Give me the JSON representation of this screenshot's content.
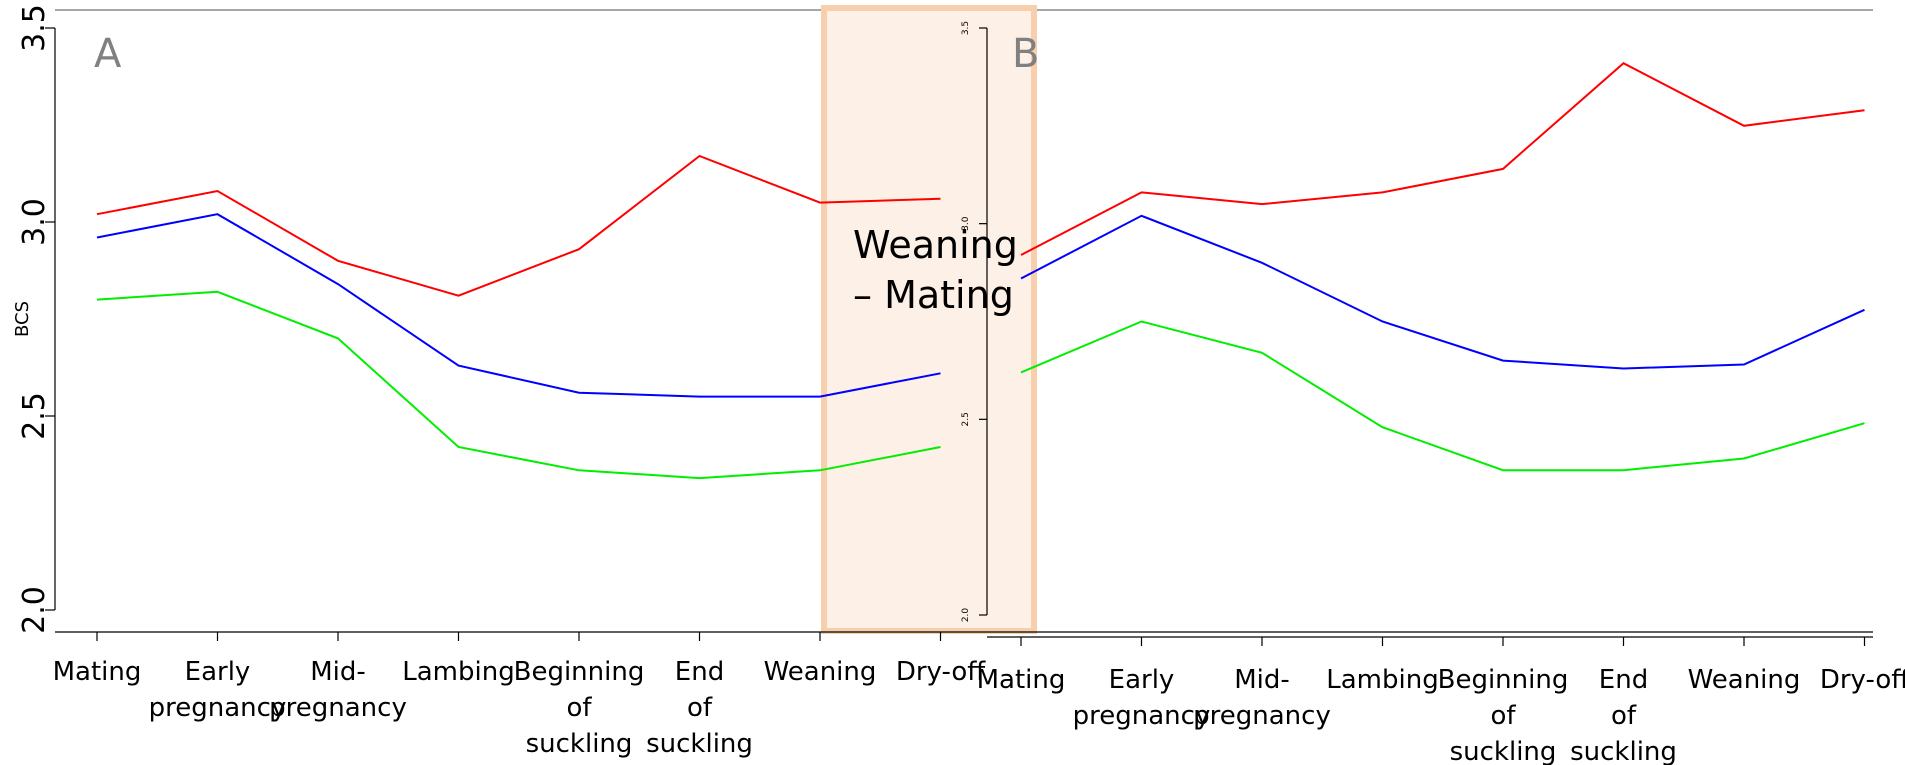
{
  "chart_data": [
    {
      "type": "line",
      "panel": "A",
      "ylabel": "BCS",
      "ylim": [
        2.0,
        3.5
      ],
      "yticks": [
        "2.0",
        "2.5",
        "3.0",
        "3.5"
      ],
      "categories": [
        [
          "Mating"
        ],
        [
          "Early",
          "pregnancy"
        ],
        [
          "Mid-",
          "pregnancy"
        ],
        [
          "Lambing"
        ],
        [
          "Beginning",
          "of",
          "suckling"
        ],
        [
          "End",
          "of",
          "suckling"
        ],
        [
          "Weaning"
        ],
        [
          "Dry-off"
        ]
      ],
      "series": [
        {
          "color": "#ff0000",
          "values": [
            3.02,
            3.08,
            2.9,
            2.81,
            2.93,
            3.17,
            3.05,
            3.06
          ]
        },
        {
          "color": "#0000ff",
          "values": [
            2.96,
            3.02,
            2.84,
            2.63,
            2.56,
            2.55,
            2.55,
            2.61
          ]
        },
        {
          "color": "#00ee00",
          "values": [
            2.8,
            2.82,
            2.7,
            2.42,
            2.36,
            2.34,
            2.36,
            2.42
          ]
        }
      ]
    },
    {
      "type": "line",
      "panel": "B",
      "ylabel": "",
      "ylim": [
        2.0,
        3.5
      ],
      "yticks": [
        "2.0",
        "2.5",
        "3.0",
        "3.5"
      ],
      "categories": [
        [
          "Mating"
        ],
        [
          "Early",
          "pregnancy"
        ],
        [
          "Mid-",
          "pregnancy"
        ],
        [
          "Lambing"
        ],
        [
          "Beginning",
          "of",
          "suckling"
        ],
        [
          "End",
          "of",
          "suckling"
        ],
        [
          "Weaning"
        ],
        [
          "Dry-off"
        ]
      ],
      "series": [
        {
          "color": "#ff0000",
          "values": [
            2.92,
            3.08,
            3.05,
            3.08,
            3.14,
            3.41,
            3.25,
            3.29
          ]
        },
        {
          "color": "#0000ff",
          "values": [
            2.86,
            3.02,
            2.9,
            2.75,
            2.65,
            2.63,
            2.64,
            2.78
          ]
        },
        {
          "color": "#00ee00",
          "values": [
            2.62,
            2.75,
            2.67,
            2.48,
            2.37,
            2.37,
            2.4,
            2.49
          ]
        }
      ]
    }
  ],
  "highlight": {
    "lines": [
      "Weaning",
      "– Mating"
    ],
    "border_color": "#f7cfad",
    "fill_color": "#fdf0e6"
  }
}
